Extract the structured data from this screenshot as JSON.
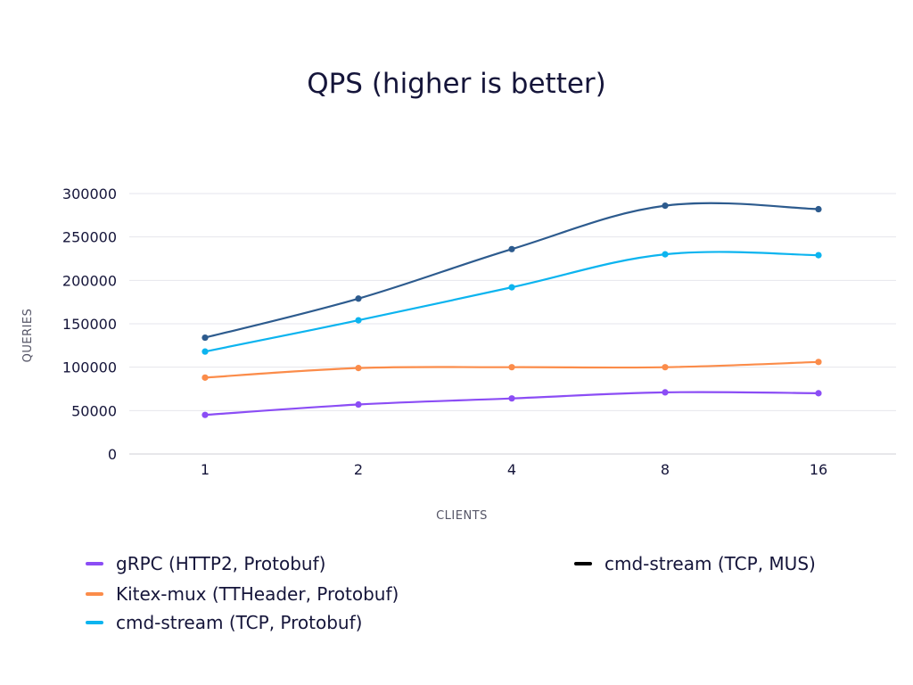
{
  "chart_data": {
    "type": "line",
    "title": "QPS (higher is better)",
    "xlabel": "CLIENTS",
    "ylabel": "QUERIES",
    "categories": [
      "1",
      "2",
      "4",
      "8",
      "16"
    ],
    "ylim": [
      0,
      300000
    ],
    "yticks": [
      "0",
      "50000",
      "100000",
      "150000",
      "200000",
      "250000",
      "300000"
    ],
    "grid": true,
    "legend_position": "bottom",
    "series": [
      {
        "name": "gRPC (HTTP2, Protobuf)",
        "color": "#8b4df5",
        "values": [
          45000,
          57000,
          64000,
          71000,
          70000
        ]
      },
      {
        "name": "Kitex-mux (TTHeader, Protobuf)",
        "color": "#fb8c4a",
        "values": [
          88000,
          99000,
          100000,
          100000,
          106000
        ]
      },
      {
        "name": "cmd-stream (TCP, Protobuf)",
        "color": "#0cb4ef",
        "values": [
          118000,
          154000,
          192000,
          230000,
          229000
        ]
      },
      {
        "name": "cmd-stream (TCP, MUS)",
        "color": "#2d5b8e",
        "legend_color": "#000000",
        "values": [
          134000,
          179000,
          236000,
          286000,
          282000
        ]
      }
    ]
  }
}
